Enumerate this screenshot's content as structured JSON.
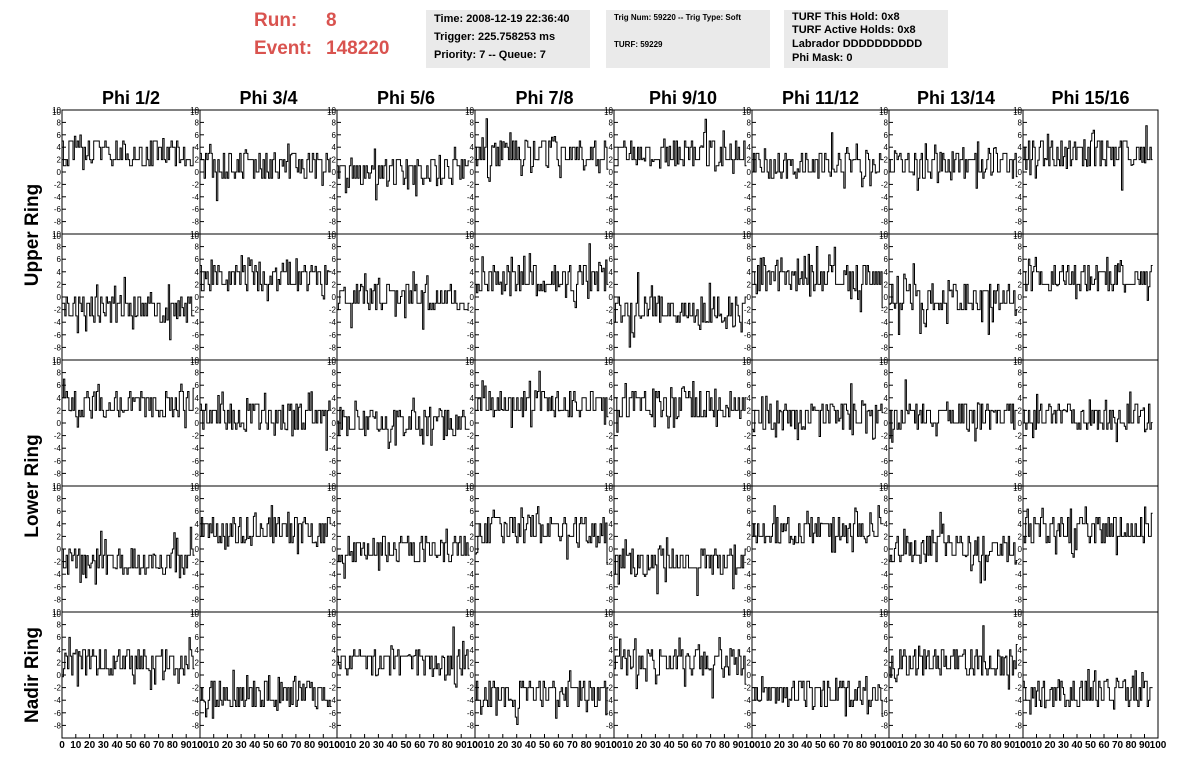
{
  "header": {
    "run_label": "Run:",
    "run_value": "8",
    "event_label": "Event:",
    "event_value": "148220",
    "box1": [
      "Time: 2008-12-19 22:36:40",
      "Trigger: 225.758253 ms",
      "Priority: 7 -- Queue: 7"
    ],
    "box2": [
      "Trig Num: 59220 -- Trig Type: Soft",
      "TURF: 59229"
    ],
    "box3": [
      "TURF This Hold: 0x8",
      "TURF Active Holds: 0x8",
      "Labrador DDDDDDDDDD",
      "Phi Mask: 0"
    ],
    "title_color": "#d9534f",
    "box_color": "#eaeaea"
  },
  "chart_data": {
    "type": "line",
    "column_labels": [
      "Phi 1/2",
      "Phi 3/4",
      "Phi 5/6",
      "Phi 7/8",
      "Phi 9/10",
      "Phi 11/12",
      "Phi 13/14",
      "Phi 15/16"
    ],
    "row_labels": [
      "Upper Ring",
      "Lower Ring",
      "Nadir Ring"
    ],
    "rows_per_label": 2,
    "x_ticks": [
      0,
      10,
      20,
      30,
      40,
      50,
      60,
      70,
      80,
      90,
      100
    ],
    "x_tick_labels": [
      "0",
      "10",
      "20",
      "30",
      "40",
      "50",
      "60",
      "70",
      "80",
      "90",
      "100"
    ],
    "y_ticks": [
      -8,
      -6,
      -4,
      -2,
      0,
      2,
      4,
      6,
      8,
      10
    ],
    "y_tick_labels": [
      "-8",
      "-6",
      "-4",
      "-2",
      "0",
      "2",
      "4",
      "6",
      "8",
      "10"
    ],
    "xlim": [
      0,
      100
    ],
    "ylim": [
      -10,
      10
    ],
    "n_samples": 96,
    "panel_baselines": [
      [
        3,
        1,
        0,
        3,
        3,
        1,
        1,
        3
      ],
      [
        -2,
        3,
        0,
        3,
        -2,
        3,
        0,
        3
      ],
      [
        3,
        1,
        0,
        3,
        3,
        1,
        1,
        1
      ],
      [
        -2,
        3,
        0,
        3,
        -2,
        3,
        0,
        3
      ],
      [
        2,
        -3,
        2,
        -3,
        2,
        -3,
        2,
        -3
      ]
    ],
    "trace_color": "#000000"
  }
}
